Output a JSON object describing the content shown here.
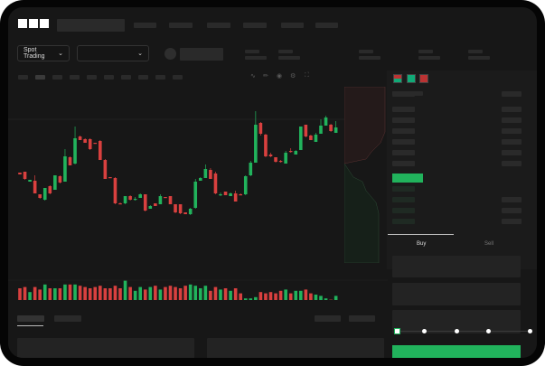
{
  "header": {
    "logo": "OKX"
  },
  "toolbar": {
    "market_selector": "Spot Trading",
    "pair_selector": ""
  },
  "trade_panel": {
    "tabs": [
      "Buy",
      "Sell"
    ],
    "active_tab": "Buy",
    "slider_percent": 0
  },
  "colors": {
    "up": "#21b35c",
    "down": "#d9403f",
    "background": "#171717",
    "placeholder": "#2a2a2a"
  },
  "icons": [
    "chevron-down-icon",
    "line-icon",
    "ruler-icon",
    "camera-icon",
    "settings-icon",
    "fullscreen-icon",
    "orderbook-both-icon",
    "orderbook-bids-icon",
    "orderbook-asks-icon"
  ],
  "chart_data": {
    "type": "candlestick",
    "title": "",
    "candles": [
      [
        67,
        65,
        67,
        65
      ],
      [
        68,
        60,
        68,
        59
      ],
      [
        57,
        59,
        59,
        57
      ],
      [
        58,
        44,
        64,
        44
      ],
      [
        43,
        39,
        43,
        38
      ],
      [
        37,
        50,
        50,
        36
      ],
      [
        52,
        44,
        53,
        43
      ],
      [
        48,
        64,
        64,
        48
      ],
      [
        63,
        56,
        64,
        55
      ],
      [
        57,
        85,
        93,
        57
      ],
      [
        84,
        75,
        85,
        75
      ],
      [
        77,
        105,
        118,
        76
      ],
      [
        107,
        103,
        108,
        103
      ],
      [
        104,
        100,
        105,
        100
      ],
      [
        104,
        93,
        105,
        92
      ],
      [
        100,
        99,
        100,
        99
      ],
      [
        102,
        81,
        103,
        81
      ],
      [
        81,
        60,
        82,
        60
      ],
      [
        62,
        61,
        62,
        61
      ],
      [
        61,
        33,
        62,
        32
      ],
      [
        33,
        32,
        34,
        32
      ],
      [
        33,
        41,
        41,
        32
      ],
      [
        41,
        37,
        42,
        36
      ],
      [
        37,
        38,
        40,
        36
      ],
      [
        39,
        43,
        44,
        39
      ],
      [
        43,
        25,
        43,
        24
      ],
      [
        27,
        30,
        31,
        27
      ],
      [
        33,
        30,
        33,
        30
      ],
      [
        32,
        41,
        43,
        32
      ],
      [
        40,
        39,
        40,
        39
      ],
      [
        41,
        32,
        41,
        32
      ],
      [
        32,
        23,
        32,
        22
      ],
      [
        32,
        22,
        32,
        21
      ],
      [
        23,
        21,
        23,
        21
      ],
      [
        21,
        27,
        28,
        20
      ],
      [
        28,
        57,
        60,
        27
      ],
      [
        58,
        61,
        62,
        58
      ],
      [
        61,
        71,
        76,
        61
      ],
      [
        70,
        60,
        72,
        60
      ],
      [
        66,
        44,
        68,
        43
      ],
      [
        43,
        43,
        45,
        41
      ],
      [
        46,
        42,
        46,
        42
      ],
      [
        41,
        44,
        45,
        41
      ],
      [
        44,
        35,
        47,
        35
      ],
      [
        43,
        42,
        44,
        42
      ],
      [
        43,
        63,
        64,
        42
      ],
      [
        64,
        78,
        80,
        63
      ],
      [
        78,
        120,
        135,
        78
      ],
      [
        122,
        110,
        123,
        108
      ],
      [
        109,
        85,
        110,
        84
      ],
      [
        87,
        85,
        89,
        84
      ],
      [
        84,
        79,
        84,
        78
      ],
      [
        80,
        79,
        81,
        78
      ],
      [
        77,
        89,
        91,
        77
      ],
      [
        91,
        90,
        94,
        89
      ],
      [
        87,
        91,
        92,
        87
      ],
      [
        92,
        118,
        118,
        92
      ],
      [
        120,
        107,
        120,
        106
      ],
      [
        108,
        103,
        109,
        103
      ],
      [
        101,
        109,
        111,
        101
      ],
      [
        110,
        119,
        126,
        110
      ],
      [
        119,
        128,
        130,
        119
      ],
      [
        120,
        113,
        121,
        112
      ],
      [
        111,
        117,
        124,
        111
      ]
    ],
    "volumes": [
      10,
      11,
      7,
      11,
      9,
      13,
      10,
      10,
      10,
      13,
      13,
      13,
      12,
      11,
      10,
      11,
      12,
      10,
      10,
      12,
      10,
      16,
      11,
      8,
      11,
      9,
      11,
      12,
      9,
      11,
      12,
      11,
      10,
      12,
      13,
      12,
      10,
      12,
      8,
      11,
      9,
      10,
      8,
      10,
      6,
      2,
      2,
      3,
      7,
      6,
      7,
      6,
      8,
      9,
      6,
      8,
      8,
      9,
      6,
      5,
      4,
      2,
      1,
      4
    ]
  }
}
